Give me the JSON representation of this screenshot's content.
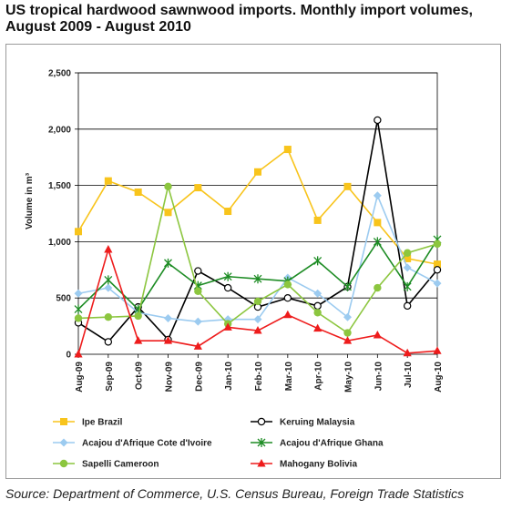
{
  "title": "US tropical hardwood sawnwood imports. Monthly import volumes, August 2009 - August 2010",
  "source": "Source: Department of Commerce, U.S. Census Bureau, Foreign Trade Statistics",
  "chart_data": {
    "type": "line",
    "title": "US tropical hardwood sawnwood imports. Monthly import volumes, August 2009 - August 2010",
    "ylabel": "Volume in m³",
    "xlabel": "",
    "ylim": [
      0,
      2500
    ],
    "yticks": [
      0,
      500,
      1000,
      1500,
      2000,
      2500
    ],
    "ytick_labels": [
      "0",
      "500",
      "1,000",
      "1,500",
      "2,000",
      "2,500"
    ],
    "grid": "horizontal",
    "legend_position": "bottom",
    "categories": [
      "Aug-09",
      "Sep-09",
      "Oct-09",
      "Nov-09",
      "Dec-09",
      "Jan-10",
      "Feb-10",
      "Mar-10",
      "Apr-10",
      "May-10",
      "Jun-10",
      "Jul-10",
      "Aug-10"
    ],
    "series": [
      {
        "name": "Ipe Brazil",
        "color": "#f8c41c",
        "marker": "square",
        "values": [
          1090,
          1540,
          1440,
          1260,
          1480,
          1270,
          1620,
          1820,
          1190,
          1490,
          1170,
          850,
          800
        ]
      },
      {
        "name": "Keruing Malaysia",
        "color": "#000000",
        "marker": "circle-open",
        "values": [
          280,
          110,
          420,
          130,
          740,
          590,
          420,
          500,
          430,
          600,
          2080,
          430,
          750
        ]
      },
      {
        "name": "Acajou d'Afrique Cote d'Ivoire",
        "color": "#9ccbf0",
        "marker": "diamond",
        "values": [
          540,
          590,
          370,
          320,
          290,
          310,
          310,
          680,
          540,
          330,
          1410,
          770,
          630
        ]
      },
      {
        "name": "Acajou d'Afrique Ghana",
        "color": "#1d8c24",
        "marker": "star",
        "values": [
          400,
          660,
          400,
          810,
          610,
          690,
          670,
          650,
          830,
          600,
          1000,
          600,
          1020
        ]
      },
      {
        "name": "Sapelli Cameroon",
        "color": "#8cc63f",
        "marker": "circle",
        "values": [
          320,
          330,
          340,
          1490,
          560,
          270,
          470,
          620,
          370,
          190,
          590,
          900,
          980
        ]
      },
      {
        "name": "Mahogany Bolivia",
        "color": "#ee1c1c",
        "marker": "triangle",
        "values": [
          0,
          930,
          120,
          120,
          70,
          240,
          210,
          350,
          230,
          120,
          170,
          10,
          30
        ]
      }
    ]
  }
}
